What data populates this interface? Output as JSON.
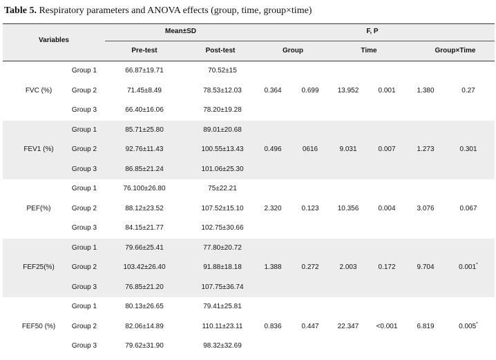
{
  "caption": {
    "label": "Table 5.",
    "text": "Respiratory parameters and ANOVA effects (group, time, group×time)"
  },
  "header": {
    "variables": "Variables",
    "mean_sd": "Mean±SD",
    "fp": "F, P",
    "pre_test": "Pre-test",
    "post_test": "Post-test",
    "group": "Group",
    "time": "Time",
    "group_time": "Group×Time"
  },
  "rows": [
    {
      "variable": "FVC (%)",
      "groups": [
        {
          "name": "Group 1",
          "pre": "66.87±19.71",
          "post": "70.52±15"
        },
        {
          "name": "Group 2",
          "pre": "71.45±8.49",
          "post": "78.53±12.03"
        },
        {
          "name": "Group 3",
          "pre": "66.40±16.06",
          "post": "78.20±19.28"
        }
      ],
      "group_f": "0.364",
      "group_p": "0.699",
      "time_f": "13.952",
      "time_p": "0.001",
      "gt_f": "1.380",
      "gt_p": "0.27",
      "gt_p_sup": ""
    },
    {
      "variable": "FEV1 (%)",
      "groups": [
        {
          "name": "Group 1",
          "pre": "85.71±25.80",
          "post": "89.01±20.68"
        },
        {
          "name": "Group 2",
          "pre": "92.76±11.43",
          "post": "100.55±13.43"
        },
        {
          "name": "Group 3",
          "pre": "86.85±21.24",
          "post": "101.06±25.30"
        }
      ],
      "group_f": "0.496",
      "group_p": "0616",
      "time_f": "9.031",
      "time_p": "0.007",
      "gt_f": "1.273",
      "gt_p": "0.301",
      "gt_p_sup": ""
    },
    {
      "variable": "PEF(%)",
      "groups": [
        {
          "name": "Group 1",
          "pre": "76.100±26.80",
          "post": "75±22.21"
        },
        {
          "name": "Group 2",
          "pre": "88.12±23.52",
          "post": "107.52±15.10"
        },
        {
          "name": "Group 3",
          "pre": "84.15±21.77",
          "post": "102.75±30.66"
        }
      ],
      "group_f": "2.320",
      "group_p": "0.123",
      "time_f": "10.356",
      "time_p": "0.004",
      "gt_f": "3.076",
      "gt_p": "0.067",
      "gt_p_sup": ""
    },
    {
      "variable": "FEF25(%)",
      "groups": [
        {
          "name": "Group 1",
          "pre": "79.66±25.41",
          "post": "77.80±20.72"
        },
        {
          "name": "Group 2",
          "pre": "103.42±26.40",
          "post": "91.88±18.18"
        },
        {
          "name": "Group 3",
          "pre": "76.85±21.20",
          "post": "107.75±36.74"
        }
      ],
      "group_f": "1.388",
      "group_p": "0.272",
      "time_f": "2.003",
      "time_p": "0.172",
      "gt_f": "9.704",
      "gt_p": "0.001",
      "gt_p_sup": "*"
    },
    {
      "variable": "FEF50 (%)",
      "groups": [
        {
          "name": "Group 1",
          "pre": "80.13±26.65",
          "post": "79.41±25.81"
        },
        {
          "name": "Group 2",
          "pre": "82.06±14.89",
          "post": "110.11±23.11"
        },
        {
          "name": "Group 3",
          "pre": "79.62±31.90",
          "post": "98.32±32.69"
        }
      ],
      "group_f": "0.836",
      "group_p": "0.447",
      "time_f": "22.347",
      "time_p": "<0.001",
      "gt_f": "6.819",
      "gt_p": "0.005",
      "gt_p_sup": "*"
    }
  ]
}
